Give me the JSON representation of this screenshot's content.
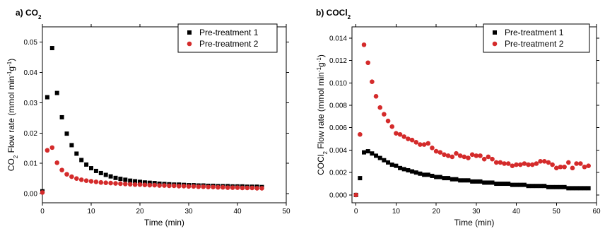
{
  "chart_data": [
    {
      "type": "scatter",
      "panel_label": "a)",
      "title": "CO",
      "title_sub": "2",
      "xlabel": "Time (min)",
      "ylabel_parts": [
        {
          "t": "CO",
          "s": "normal"
        },
        {
          "t": "2",
          "s": "sub"
        },
        {
          "t": " Flow rate (mmol min",
          "s": "normal"
        },
        {
          "t": "-1",
          "s": "sup"
        },
        {
          "t": "g",
          "s": "normal"
        },
        {
          "t": "-1",
          "s": "sup"
        },
        {
          "t": ")",
          "s": "normal"
        }
      ],
      "xlim": [
        0,
        50
      ],
      "ylim": [
        -0.003,
        0.055
      ],
      "xticks": [
        0,
        10,
        20,
        30,
        40,
        50
      ],
      "xtick_labels": [
        "0",
        "10",
        "20",
        "30",
        "40",
        "50"
      ],
      "yticks": [
        0,
        0.01,
        0.02,
        0.03,
        0.04,
        0.05
      ],
      "ytick_labels": [
        "0.00",
        "0.01",
        "0.02",
        "0.03",
        "0.04",
        "0.05"
      ],
      "legend_position": "top-right",
      "grid": false,
      "series": [
        {
          "name": "Pre-treatment 1",
          "color": "#000000",
          "marker": "square",
          "points": [
            [
              0,
              0.0008
            ],
            [
              1,
              0.0318
            ],
            [
              2,
              0.048
            ],
            [
              3,
              0.0332
            ],
            [
              4,
              0.0252
            ],
            [
              5,
              0.0198
            ],
            [
              6,
              0.016
            ],
            [
              7,
              0.0132
            ],
            [
              8,
              0.0111
            ],
            [
              9,
              0.0096
            ],
            [
              10,
              0.0084
            ],
            [
              11,
              0.0075
            ],
            [
              12,
              0.0068
            ],
            [
              13,
              0.0062
            ],
            [
              14,
              0.0057
            ],
            [
              15,
              0.0052
            ],
            [
              16,
              0.0049
            ],
            [
              17,
              0.0046
            ],
            [
              18,
              0.0043
            ],
            [
              19,
              0.0041
            ],
            [
              20,
              0.0039
            ],
            [
              21,
              0.0037
            ],
            [
              22,
              0.0036
            ],
            [
              23,
              0.0035
            ],
            [
              24,
              0.0033
            ],
            [
              25,
              0.0032
            ],
            [
              26,
              0.0031
            ],
            [
              27,
              0.003
            ],
            [
              28,
              0.003
            ],
            [
              29,
              0.0029
            ],
            [
              30,
              0.0028
            ],
            [
              31,
              0.0028
            ],
            [
              32,
              0.0027
            ],
            [
              33,
              0.0027
            ],
            [
              34,
              0.0026
            ],
            [
              35,
              0.0026
            ],
            [
              36,
              0.0025
            ],
            [
              37,
              0.0025
            ],
            [
              38,
              0.0025
            ],
            [
              39,
              0.0024
            ],
            [
              40,
              0.0024
            ],
            [
              41,
              0.0024
            ],
            [
              42,
              0.0023
            ],
            [
              43,
              0.0023
            ],
            [
              44,
              0.0023
            ],
            [
              45,
              0.0022
            ]
          ]
        },
        {
          "name": "Pre-treatment 2",
          "color": "#d42b2b",
          "marker": "circle",
          "points": [
            [
              0,
              0.0004
            ],
            [
              1,
              0.0143
            ],
            [
              2,
              0.0152
            ],
            [
              3,
              0.0102
            ],
            [
              4,
              0.0078
            ],
            [
              5,
              0.0064
            ],
            [
              6,
              0.0056
            ],
            [
              7,
              0.005
            ],
            [
              8,
              0.0046
            ],
            [
              9,
              0.0043
            ],
            [
              10,
              0.0041
            ],
            [
              11,
              0.0039
            ],
            [
              12,
              0.0037
            ],
            [
              13,
              0.0036
            ],
            [
              14,
              0.0035
            ],
            [
              15,
              0.0034
            ],
            [
              16,
              0.0033
            ],
            [
              17,
              0.0032
            ],
            [
              18,
              0.0031
            ],
            [
              19,
              0.003
            ],
            [
              20,
              0.003
            ],
            [
              21,
              0.0029
            ],
            [
              22,
              0.0028
            ],
            [
              23,
              0.0028
            ],
            [
              24,
              0.0027
            ],
            [
              25,
              0.0027
            ],
            [
              26,
              0.0026
            ],
            [
              27,
              0.0026
            ],
            [
              28,
              0.0025
            ],
            [
              29,
              0.0025
            ],
            [
              30,
              0.0024
            ],
            [
              31,
              0.0024
            ],
            [
              32,
              0.0023
            ],
            [
              33,
              0.0023
            ],
            [
              34,
              0.0022
            ],
            [
              35,
              0.0022
            ],
            [
              36,
              0.0021
            ],
            [
              37,
              0.0021
            ],
            [
              38,
              0.002
            ],
            [
              39,
              0.002
            ],
            [
              40,
              0.002
            ],
            [
              41,
              0.0019
            ],
            [
              42,
              0.0019
            ],
            [
              43,
              0.0019
            ],
            [
              44,
              0.0018
            ],
            [
              45,
              0.0018
            ]
          ]
        }
      ]
    },
    {
      "type": "scatter",
      "panel_label": "b)",
      "title": "COCl",
      "title_sub": "2",
      "xlabel": "Time (min)",
      "ylabel_parts": [
        {
          "t": "COCl",
          "s": "normal"
        },
        {
          "t": "2",
          "s": "sub"
        },
        {
          "t": " Flow rate (mmol min",
          "s": "normal"
        },
        {
          "t": "-1",
          "s": "sup"
        },
        {
          "t": "g",
          "s": "normal"
        },
        {
          "t": "-1",
          "s": "sup"
        },
        {
          "t": ")",
          "s": "normal"
        }
      ],
      "xlim": [
        -1,
        60
      ],
      "ylim": [
        -0.0007,
        0.015
      ],
      "xticks": [
        0,
        10,
        20,
        30,
        40,
        50,
        60
      ],
      "xtick_labels": [
        "0",
        "10",
        "20",
        "30",
        "40",
        "50",
        "60"
      ],
      "yticks": [
        0,
        0.002,
        0.004,
        0.006,
        0.008,
        0.01,
        0.012,
        0.014
      ],
      "ytick_labels": [
        "0.000",
        "0.002",
        "0.004",
        "0.006",
        "0.008",
        "0.010",
        "0.012",
        "0.014"
      ],
      "legend_position": "top-right",
      "grid": false,
      "series": [
        {
          "name": "Pre-treatment 1",
          "color": "#000000",
          "marker": "square",
          "points": [
            [
              0,
              0.0
            ],
            [
              1,
              0.0015
            ],
            [
              2,
              0.0038
            ],
            [
              3,
              0.0039
            ],
            [
              4,
              0.0037
            ],
            [
              5,
              0.0035
            ],
            [
              6,
              0.0033
            ],
            [
              7,
              0.0031
            ],
            [
              8,
              0.0029
            ],
            [
              9,
              0.0027
            ],
            [
              10,
              0.0026
            ],
            [
              11,
              0.0024
            ],
            [
              12,
              0.0023
            ],
            [
              13,
              0.0022
            ],
            [
              14,
              0.0021
            ],
            [
              15,
              0.002
            ],
            [
              16,
              0.0019
            ],
            [
              17,
              0.0018
            ],
            [
              18,
              0.0018
            ],
            [
              19,
              0.0017
            ],
            [
              20,
              0.0016
            ],
            [
              21,
              0.0016
            ],
            [
              22,
              0.0015
            ],
            [
              23,
              0.0015
            ],
            [
              24,
              0.0014
            ],
            [
              25,
              0.0014
            ],
            [
              26,
              0.0013
            ],
            [
              27,
              0.0013
            ],
            [
              28,
              0.0013
            ],
            [
              29,
              0.0012
            ],
            [
              30,
              0.0012
            ],
            [
              31,
              0.0012
            ],
            [
              32,
              0.0011
            ],
            [
              33,
              0.0011
            ],
            [
              34,
              0.0011
            ],
            [
              35,
              0.001
            ],
            [
              36,
              0.001
            ],
            [
              37,
              0.001
            ],
            [
              38,
              0.001
            ],
            [
              39,
              0.0009
            ],
            [
              40,
              0.0009
            ],
            [
              41,
              0.0009
            ],
            [
              42,
              0.0009
            ],
            [
              43,
              0.0008
            ],
            [
              44,
              0.0008
            ],
            [
              45,
              0.0008
            ],
            [
              46,
              0.0008
            ],
            [
              47,
              0.0008
            ],
            [
              48,
              0.0007
            ],
            [
              49,
              0.0007
            ],
            [
              50,
              0.0007
            ],
            [
              51,
              0.0007
            ],
            [
              52,
              0.0007
            ],
            [
              53,
              0.0006
            ],
            [
              54,
              0.0006
            ],
            [
              55,
              0.0006
            ],
            [
              56,
              0.0006
            ],
            [
              57,
              0.0006
            ],
            [
              58,
              0.0006
            ]
          ]
        },
        {
          "name": "Pre-treatment 2",
          "color": "#d42b2b",
          "marker": "circle",
          "points": [
            [
              0,
              0.0
            ],
            [
              1,
              0.0054
            ],
            [
              2,
              0.0134
            ],
            [
              3,
              0.0118
            ],
            [
              4,
              0.0101
            ],
            [
              5,
              0.0088
            ],
            [
              6,
              0.0078
            ],
            [
              7,
              0.0072
            ],
            [
              8,
              0.0066
            ],
            [
              9,
              0.0061
            ],
            [
              10,
              0.0055
            ],
            [
              11,
              0.0054
            ],
            [
              12,
              0.0052
            ],
            [
              13,
              0.005
            ],
            [
              14,
              0.0049
            ],
            [
              15,
              0.0047
            ],
            [
              16,
              0.0045
            ],
            [
              17,
              0.0045
            ],
            [
              18,
              0.0046
            ],
            [
              19,
              0.0042
            ],
            [
              20,
              0.0039
            ],
            [
              21,
              0.0038
            ],
            [
              22,
              0.0036
            ],
            [
              23,
              0.0035
            ],
            [
              24,
              0.0034
            ],
            [
              25,
              0.0037
            ],
            [
              26,
              0.0035
            ],
            [
              27,
              0.0034
            ],
            [
              28,
              0.0033
            ],
            [
              29,
              0.0036
            ],
            [
              30,
              0.0035
            ],
            [
              31,
              0.0035
            ],
            [
              32,
              0.0032
            ],
            [
              33,
              0.0034
            ],
            [
              34,
              0.0032
            ],
            [
              35,
              0.0029
            ],
            [
              36,
              0.0029
            ],
            [
              37,
              0.0028
            ],
            [
              38,
              0.0028
            ],
            [
              39,
              0.0026
            ],
            [
              40,
              0.0027
            ],
            [
              41,
              0.0027
            ],
            [
              42,
              0.0028
            ],
            [
              43,
              0.0027
            ],
            [
              44,
              0.0027
            ],
            [
              45,
              0.0028
            ],
            [
              46,
              0.003
            ],
            [
              47,
              0.003
            ],
            [
              48,
              0.0029
            ],
            [
              49,
              0.0027
            ],
            [
              50,
              0.0024
            ],
            [
              51,
              0.0025
            ],
            [
              52,
              0.0025
            ],
            [
              53,
              0.0029
            ],
            [
              54,
              0.0024
            ],
            [
              55,
              0.0028
            ],
            [
              56,
              0.0028
            ],
            [
              57,
              0.0025
            ],
            [
              58,
              0.0026
            ]
          ]
        }
      ]
    }
  ]
}
